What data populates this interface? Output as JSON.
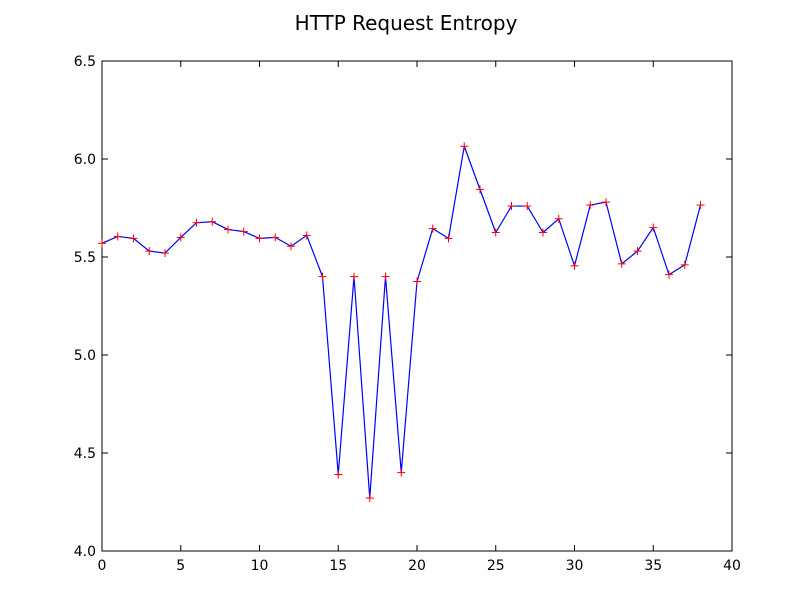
{
  "chart_data": {
    "type": "line",
    "title": "HTTP Request Entropy",
    "xlabel": "",
    "ylabel": "",
    "xlim": [
      0,
      40
    ],
    "ylim": [
      4.0,
      6.5
    ],
    "x_ticks": [
      0,
      5,
      10,
      15,
      20,
      25,
      30,
      35,
      40
    ],
    "y_ticks": [
      4.0,
      4.5,
      5.0,
      5.5,
      6.0,
      6.5
    ],
    "x_tick_labels": [
      "0",
      "5",
      "10",
      "15",
      "20",
      "25",
      "30",
      "35",
      "40"
    ],
    "y_tick_labels": [
      "4.0",
      "4.5",
      "5.0",
      "5.5",
      "6.0",
      "6.5"
    ],
    "grid": false,
    "legend": "none",
    "series": [
      {
        "line_color": "#0000ff",
        "marker": "+",
        "marker_color": "#ff0000",
        "x": [
          0,
          1,
          2,
          3,
          4,
          5,
          6,
          7,
          8,
          9,
          10,
          11,
          12,
          13,
          14,
          15,
          16,
          17,
          18,
          19,
          20,
          21,
          22,
          23,
          24,
          25,
          26,
          27,
          28,
          29,
          30,
          31,
          32,
          33,
          34,
          35,
          36,
          37,
          38
        ],
        "values": [
          5.57,
          5.605,
          5.595,
          5.53,
          5.52,
          5.6,
          5.675,
          5.68,
          5.64,
          5.63,
          5.595,
          5.6,
          5.555,
          5.61,
          5.4,
          4.39,
          5.4,
          4.27,
          5.4,
          4.4,
          5.375,
          5.645,
          5.595,
          6.065,
          5.845,
          5.625,
          5.76,
          5.76,
          5.625,
          5.695,
          5.455,
          5.765,
          5.78,
          5.465,
          5.53,
          5.65,
          5.41,
          5.46,
          5.765
        ]
      }
    ]
  }
}
